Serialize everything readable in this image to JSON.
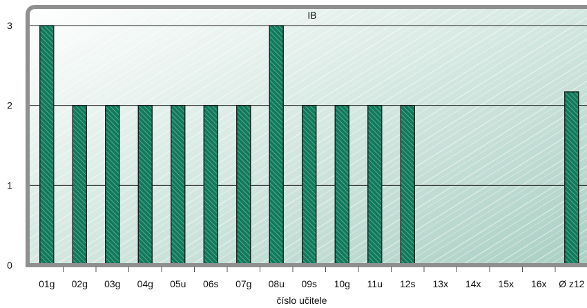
{
  "chart_data": {
    "type": "bar",
    "title": "IB",
    "xlabel": "číslo učitele",
    "ylabel": "",
    "ylim": [
      0,
      3
    ],
    "yticks": [
      "0",
      "1",
      "2",
      "3"
    ],
    "categories": [
      "01g",
      "02g",
      "03g",
      "04g",
      "05u",
      "06s",
      "07g",
      "08u",
      "09s",
      "10g",
      "11u",
      "12s",
      "13x",
      "14x",
      "15x",
      "16x",
      "Ø z12"
    ],
    "values": [
      3,
      2,
      2,
      2,
      2,
      2,
      2,
      3,
      2,
      2,
      2,
      2,
      null,
      null,
      null,
      null,
      2.17
    ],
    "grid": true,
    "legend": "none",
    "colors": {
      "bar": "#0f7a5c",
      "bar_stroke": "#12201a",
      "hatch": "#c4e0d5",
      "background_light": "#ffffff",
      "background_dark": "#a9cfc3",
      "frame": "#8f8f8f"
    }
  }
}
